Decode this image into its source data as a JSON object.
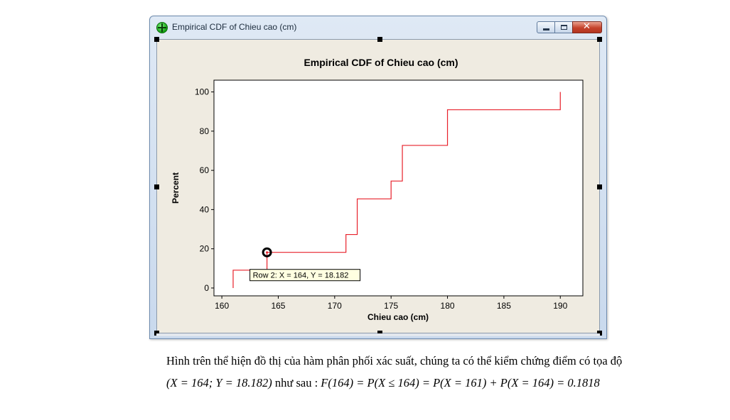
{
  "window": {
    "title": "Empirical CDF of Chieu cao (cm)",
    "icon": "minitab-graph-icon",
    "controls": [
      "minimize",
      "maximize",
      "close"
    ]
  },
  "chart_data": {
    "type": "line",
    "step": true,
    "title": "Empirical CDF of Chieu cao (cm)",
    "xlabel": "Chieu cao (cm)",
    "ylabel": "Percent",
    "xlim": [
      159.3,
      192
    ],
    "ylim": [
      -4,
      106
    ],
    "xticks": [
      160,
      165,
      170,
      175,
      180,
      185,
      190
    ],
    "yticks": [
      0,
      20,
      40,
      60,
      80,
      100
    ],
    "line_color": "#e8202a",
    "grid": false,
    "series": [
      {
        "x": [
          161,
          164,
          171,
          172,
          175,
          176,
          180,
          190
        ],
        "y": [
          9.091,
          18.182,
          27.273,
          45.455,
          54.545,
          72.727,
          90.909,
          100
        ]
      }
    ],
    "highlight": {
      "x": 164,
      "y": 18.182
    },
    "tooltip": "Row 2: X = 164, Y = 18.182"
  },
  "caption": {
    "line1": "Hình trên thể hiện đồ thị của hàm phân phối xác suất, chúng ta có thể kiểm chứng điểm có tọa độ",
    "line2_point": "(X = 164; Y = 18.182)",
    "line2_text": " như sau : ",
    "line2_formula": "F(164) = P(X ≤ 164) = P(X = 161) + P(X = 164) = 0.1818"
  }
}
